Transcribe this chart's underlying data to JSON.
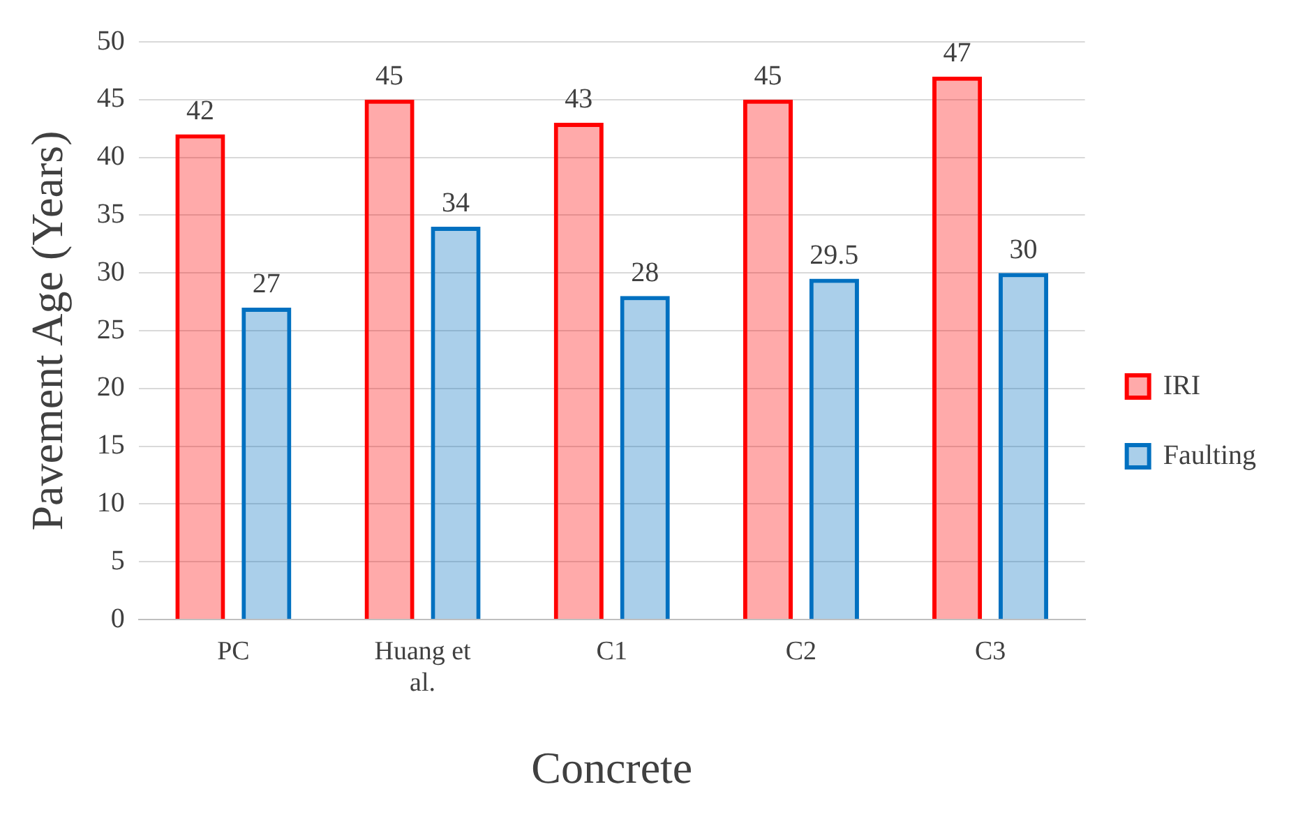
{
  "chart_data": {
    "type": "bar",
    "xlabel": "Concrete",
    "ylabel": "Pavement Age (Years)",
    "categories": [
      "PC",
      "Huang et al.",
      "C1",
      "C2",
      "C3"
    ],
    "series": [
      {
        "name": "IRI",
        "color": "#ff0000",
        "values": [
          42,
          45,
          43,
          45,
          47
        ]
      },
      {
        "name": "Faulting",
        "color": "#0070c0",
        "values": [
          27,
          34,
          28,
          29.5,
          30
        ]
      }
    ],
    "ylim": [
      0,
      50
    ],
    "yticks": [
      0,
      5,
      10,
      15,
      20,
      25,
      30,
      35,
      40,
      45,
      50
    ],
    "grid": "y",
    "legend": "right",
    "data_labels": true
  }
}
